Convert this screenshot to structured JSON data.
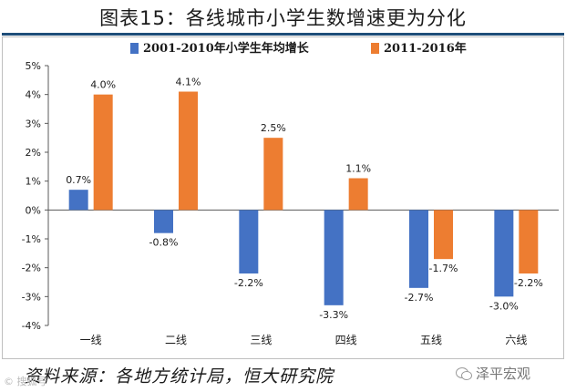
{
  "title": "图表15：各线城市小学生数增速更为分化",
  "source": "资料来源：各地方统计局，恒大研究院",
  "watermark_left": "© 搜狐号",
  "watermark_right": "泽平宏观",
  "colors": {
    "series1": "#4472c4",
    "series2": "#ed7d31",
    "title_rule": "#1f4e79",
    "axis": "#595959"
  },
  "chart_data": {
    "type": "bar",
    "categories": [
      "一线",
      "二线",
      "三线",
      "四线",
      "五线",
      "六线"
    ],
    "series": [
      {
        "name": "2001-2010年小学生年均增长",
        "values": [
          0.7,
          -0.8,
          -2.2,
          -3.3,
          -2.7,
          -3.0
        ],
        "labels": [
          "0.7%",
          "-0.8%",
          "-2.2%",
          "-3.3%",
          "-2.7%",
          "-3.0%"
        ]
      },
      {
        "name": "2011-2016年",
        "values": [
          4.0,
          4.1,
          2.5,
          1.1,
          -1.7,
          -2.2
        ],
        "labels": [
          "4.0%",
          "4.1%",
          "2.5%",
          "1.1%",
          "-1.7%",
          "-2.2%"
        ]
      }
    ],
    "ylim": [
      -4,
      5
    ],
    "yticks": [
      "-4%",
      "-3%",
      "-2%",
      "-1%",
      "0%",
      "1%",
      "2%",
      "3%",
      "4%",
      "5%"
    ],
    "legend": "top-center",
    "grid": false
  }
}
